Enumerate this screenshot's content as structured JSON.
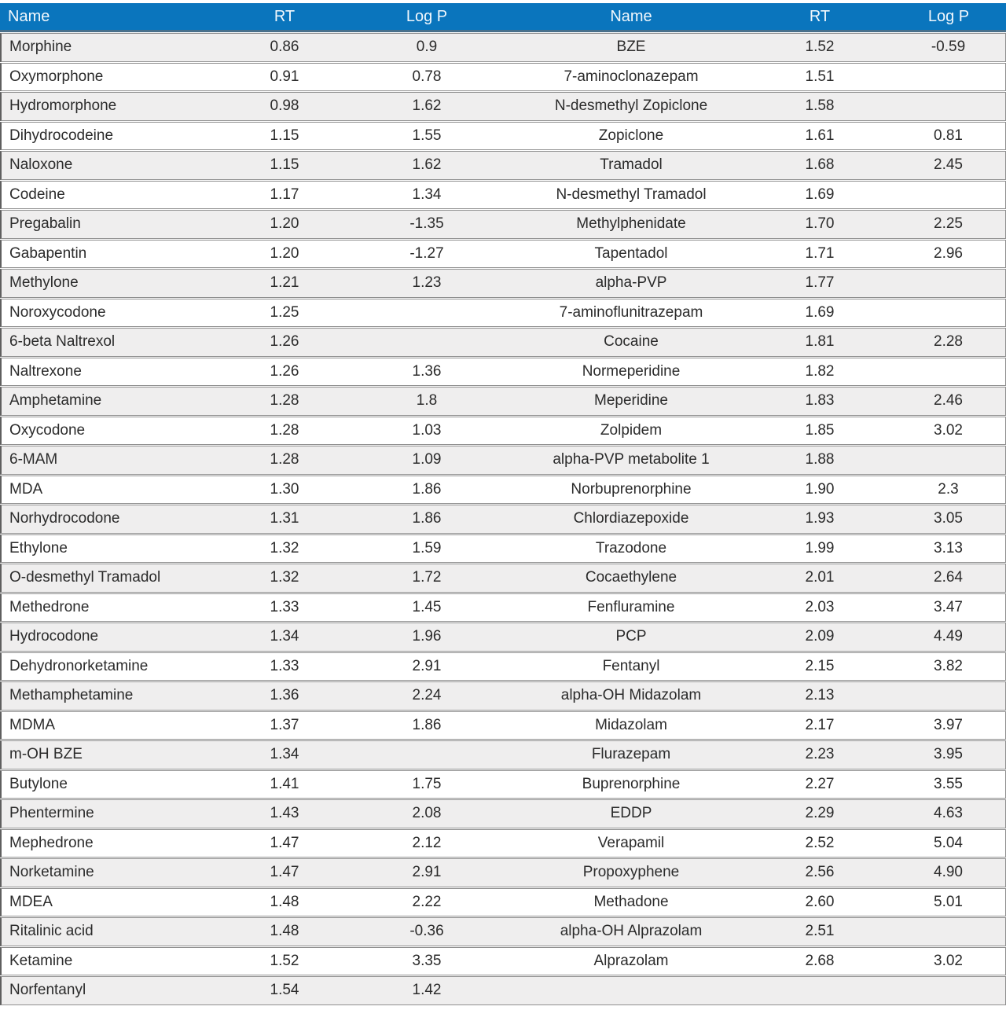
{
  "colors": {
    "header_bg": "#0a75bd",
    "header_text": "#f2f8fd",
    "header_border": "#49708b",
    "row_alt": "#efeeee",
    "row_plain": "#ffffff",
    "line": "#8f8f8f",
    "edge": "#5f5f5f",
    "text": "#2b2b2b"
  },
  "header": {
    "columns": [
      "Name",
      "RT",
      "Log P",
      "Name",
      "RT",
      "Log P"
    ]
  },
  "chart_data": {
    "type": "table",
    "columns": [
      "Name",
      "RT",
      "Log P",
      "Name",
      "RT",
      "Log P"
    ],
    "note": "Two side-by-side compound listings sharing one header row"
  },
  "rows": [
    {
      "left": {
        "name": "Morphine",
        "rt": "0.86",
        "logp": "0.9"
      },
      "right": {
        "name": "BZE",
        "rt": "1.52",
        "logp": "-0.59"
      }
    },
    {
      "left": {
        "name": "Oxymorphone",
        "rt": "0.91",
        "logp": "0.78"
      },
      "right": {
        "name": "7-aminoclonazepam",
        "rt": "1.51",
        "logp": ""
      }
    },
    {
      "left": {
        "name": "Hydromorphone",
        "rt": "0.98",
        "logp": "1.62"
      },
      "right": {
        "name": "N-desmethyl Zopiclone",
        "rt": "1.58",
        "logp": ""
      }
    },
    {
      "left": {
        "name": "Dihydrocodeine",
        "rt": "1.15",
        "logp": "1.55"
      },
      "right": {
        "name": "Zopiclone",
        "rt": "1.61",
        "logp": "0.81"
      }
    },
    {
      "left": {
        "name": "Naloxone",
        "rt": "1.15",
        "logp": "1.62"
      },
      "right": {
        "name": "Tramadol",
        "rt": "1.68",
        "logp": "2.45"
      }
    },
    {
      "left": {
        "name": "Codeine",
        "rt": "1.17",
        "logp": "1.34"
      },
      "right": {
        "name": "N-desmethyl Tramadol",
        "rt": "1.69",
        "logp": ""
      }
    },
    {
      "left": {
        "name": "Pregabalin",
        "rt": "1.20",
        "logp": "-1.35"
      },
      "right": {
        "name": "Methylphenidate",
        "rt": "1.70",
        "logp": "2.25"
      }
    },
    {
      "left": {
        "name": "Gabapentin",
        "rt": "1.20",
        "logp": "-1.27"
      },
      "right": {
        "name": "Tapentadol",
        "rt": "1.71",
        "logp": "2.96"
      }
    },
    {
      "left": {
        "name": "Methylone",
        "rt": "1.21",
        "logp": "1.23"
      },
      "right": {
        "name": "alpha-PVP",
        "rt": "1.77",
        "logp": ""
      }
    },
    {
      "left": {
        "name": "Noroxycodone",
        "rt": "1.25",
        "logp": ""
      },
      "right": {
        "name": "7-aminoflunitrazepam",
        "rt": "1.69",
        "logp": ""
      }
    },
    {
      "left": {
        "name": "6-beta Naltrexol",
        "rt": "1.26",
        "logp": ""
      },
      "right": {
        "name": "Cocaine",
        "rt": "1.81",
        "logp": "2.28"
      }
    },
    {
      "left": {
        "name": "Naltrexone",
        "rt": "1.26",
        "logp": "1.36"
      },
      "right": {
        "name": "Normeperidine",
        "rt": "1.82",
        "logp": ""
      }
    },
    {
      "left": {
        "name": "Amphetamine",
        "rt": "1.28",
        "logp": "1.8"
      },
      "right": {
        "name": "Meperidine",
        "rt": "1.83",
        "logp": "2.46"
      }
    },
    {
      "left": {
        "name": "Oxycodone",
        "rt": "1.28",
        "logp": "1.03"
      },
      "right": {
        "name": "Zolpidem",
        "rt": "1.85",
        "logp": "3.02"
      }
    },
    {
      "left": {
        "name": "6-MAM",
        "rt": "1.28",
        "logp": "1.09"
      },
      "right": {
        "name": "alpha-PVP metabolite 1",
        "rt": "1.88",
        "logp": ""
      }
    },
    {
      "left": {
        "name": "MDA",
        "rt": "1.30",
        "logp": "1.86"
      },
      "right": {
        "name": "Norbuprenorphine",
        "rt": "1.90",
        "logp": "2.3"
      }
    },
    {
      "left": {
        "name": "Norhydrocodone",
        "rt": "1.31",
        "logp": "1.86"
      },
      "right": {
        "name": "Chlordiazepoxide",
        "rt": "1.93",
        "logp": "3.05"
      }
    },
    {
      "left": {
        "name": "Ethylone",
        "rt": "1.32",
        "logp": "1.59"
      },
      "right": {
        "name": "Trazodone",
        "rt": "1.99",
        "logp": "3.13"
      }
    },
    {
      "left": {
        "name": "O-desmethyl Tramadol",
        "rt": "1.32",
        "logp": "1.72"
      },
      "right": {
        "name": "Cocaethylene",
        "rt": "2.01",
        "logp": "2.64"
      }
    },
    {
      "left": {
        "name": "Methedrone",
        "rt": "1.33",
        "logp": "1.45"
      },
      "right": {
        "name": "Fenfluramine",
        "rt": "2.03",
        "logp": "3.47"
      }
    },
    {
      "left": {
        "name": "Hydrocodone",
        "rt": "1.34",
        "logp": "1.96"
      },
      "right": {
        "name": "PCP",
        "rt": "2.09",
        "logp": "4.49"
      }
    },
    {
      "left": {
        "name": "Dehydronorketamine",
        "rt": "1.33",
        "logp": "2.91"
      },
      "right": {
        "name": "Fentanyl",
        "rt": "2.15",
        "logp": "3.82"
      }
    },
    {
      "left": {
        "name": "Methamphetamine",
        "rt": "1.36",
        "logp": "2.24"
      },
      "right": {
        "name": "alpha-OH Midazolam",
        "rt": "2.13",
        "logp": ""
      }
    },
    {
      "left": {
        "name": "MDMA",
        "rt": "1.37",
        "logp": "1.86"
      },
      "right": {
        "name": "Midazolam",
        "rt": "2.17",
        "logp": "3.97"
      }
    },
    {
      "left": {
        "name": "m-OH BZE",
        "rt": "1.34",
        "logp": ""
      },
      "right": {
        "name": "Flurazepam",
        "rt": "2.23",
        "logp": "3.95"
      }
    },
    {
      "left": {
        "name": "Butylone",
        "rt": "1.41",
        "logp": "1.75"
      },
      "right": {
        "name": "Buprenorphine",
        "rt": "2.27",
        "logp": "3.55"
      }
    },
    {
      "left": {
        "name": "Phentermine",
        "rt": "1.43",
        "logp": "2.08"
      },
      "right": {
        "name": "EDDP",
        "rt": "2.29",
        "logp": "4.63"
      }
    },
    {
      "left": {
        "name": "Mephedrone",
        "rt": "1.47",
        "logp": "2.12"
      },
      "right": {
        "name": "Verapamil",
        "rt": "2.52",
        "logp": "5.04"
      }
    },
    {
      "left": {
        "name": "Norketamine",
        "rt": "1.47",
        "logp": "2.91"
      },
      "right": {
        "name": "Propoxyphene",
        "rt": "2.56",
        "logp": "4.90"
      }
    },
    {
      "left": {
        "name": "MDEA",
        "rt": "1.48",
        "logp": "2.22"
      },
      "right": {
        "name": "Methadone",
        "rt": "2.60",
        "logp": "5.01"
      }
    },
    {
      "left": {
        "name": "Ritalinic acid",
        "rt": "1.48",
        "logp": "-0.36"
      },
      "right": {
        "name": "alpha-OH Alprazolam",
        "rt": "2.51",
        "logp": ""
      }
    },
    {
      "left": {
        "name": "Ketamine",
        "rt": "1.52",
        "logp": "3.35"
      },
      "right": {
        "name": "Alprazolam",
        "rt": "2.68",
        "logp": "3.02"
      }
    },
    {
      "left": {
        "name": "Norfentanyl",
        "rt": "1.54",
        "logp": "1.42"
      },
      "right": {
        "name": "",
        "rt": "",
        "logp": ""
      }
    }
  ]
}
